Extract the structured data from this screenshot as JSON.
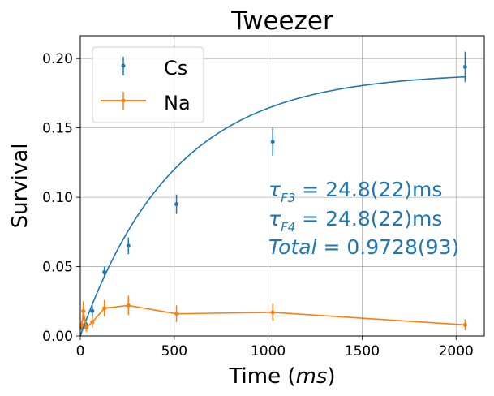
{
  "chart_data": {
    "type": "scatter",
    "title": "Tweezer",
    "xlabel": "Time ($ms$)",
    "xlabel_parts": {
      "main": "Time (",
      "italic": "ms",
      "end": ")"
    },
    "ylabel": "Survival",
    "xlim": [
      0,
      2150
    ],
    "ylim": [
      0,
      0.2165
    ],
    "xticks": [
      0,
      500,
      1000,
      1500,
      2000
    ],
    "xtick_labels": [
      "0",
      "500",
      "1000",
      "1500",
      "2000"
    ],
    "yticks": [
      0.0,
      0.05,
      0.1,
      0.15,
      0.2
    ],
    "ytick_labels": [
      "0.00",
      "0.05",
      "0.10",
      "0.15",
      "0.20"
    ],
    "grid": true,
    "legend_position": "top-left",
    "series": [
      {
        "name": "Cs",
        "color": "#1f77b4",
        "style": "points",
        "x": [
          8,
          16,
          32,
          64,
          128,
          256,
          512,
          1024,
          2048
        ],
        "y": [
          0.006,
          0.007,
          0.008,
          0.018,
          0.046,
          0.065,
          0.095,
          0.14,
          0.194
        ],
        "yerr": [
          0.002,
          0.002,
          0.002,
          0.004,
          0.004,
          0.006,
          0.007,
          0.01,
          0.011
        ]
      },
      {
        "name": "Na",
        "color": "#ff7f0e",
        "style": "line-points",
        "x": [
          8,
          16,
          32,
          64,
          128,
          256,
          512,
          1024,
          2048
        ],
        "y": [
          0.008,
          0.018,
          0.006,
          0.01,
          0.02,
          0.022,
          0.016,
          0.017,
          0.008
        ],
        "yerr": [
          0.003,
          0.007,
          0.003,
          0.004,
          0.006,
          0.007,
          0.006,
          0.006,
          0.004
        ]
      }
    ],
    "fit": {
      "color": "#1f77b4",
      "model": "y = A * (1 - exp(-x / tau))",
      "A": 0.19,
      "tau": 500,
      "x_range": [
        0,
        2050
      ]
    },
    "annotations": [
      {
        "lines": [
          "τ_F3 = 24.8(22)ms",
          "τ_F4 = 24.8(22)ms",
          "Total = 0.9728(93)"
        ],
        "color": "#1f77b4"
      }
    ],
    "annotation_parts": [
      {
        "sym": "τ",
        "sub": "F3",
        "rest": " = 24.8(22)ms"
      },
      {
        "sym": "τ",
        "sub": "F4",
        "rest": " = 24.8(22)ms"
      },
      {
        "italic": "Total",
        "rest": " = 0.9728(93)"
      }
    ]
  }
}
